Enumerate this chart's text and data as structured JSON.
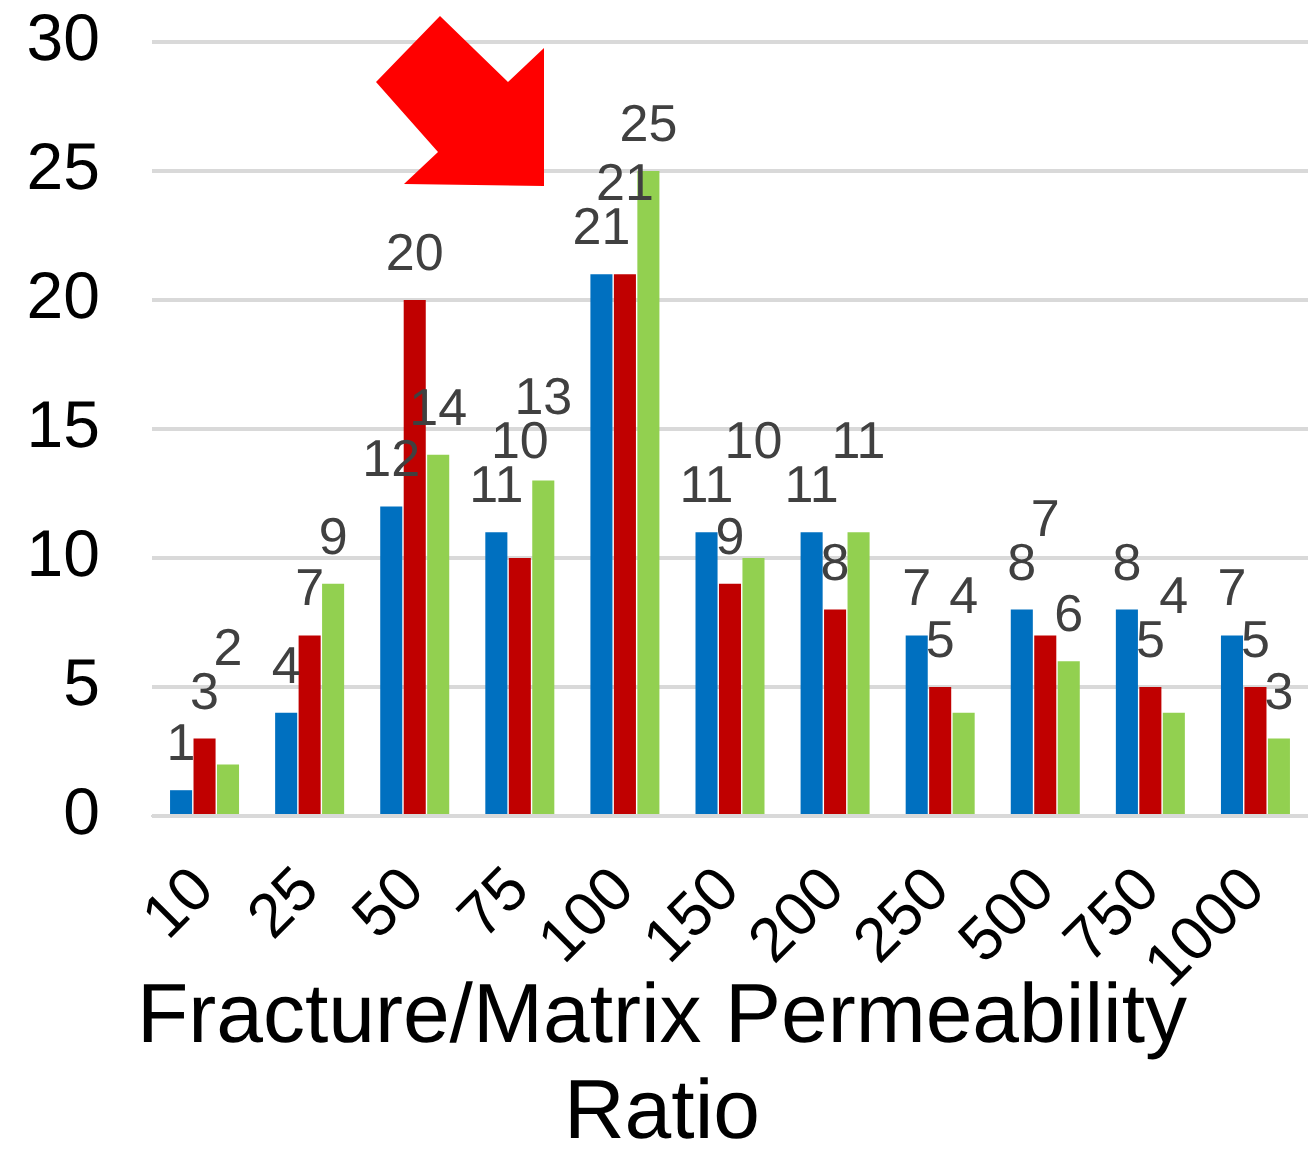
{
  "chart_data": {
    "type": "bar",
    "xlabel": "Fracture/Matrix Permeability Ratio",
    "categories": [
      "10",
      "25",
      "50",
      "75",
      "100",
      "150",
      "200",
      "250",
      "500",
      "750",
      "1000"
    ],
    "series": [
      {
        "color": "#0070c0",
        "values": [
          1,
          4,
          12,
          11,
          21,
          11,
          11,
          7,
          8,
          8,
          7
        ]
      },
      {
        "color": "#c00000",
        "values": [
          3,
          7,
          20,
          10,
          21,
          9,
          8,
          5,
          7,
          5,
          5
        ]
      },
      {
        "color": "#92d050",
        "values": [
          2,
          9,
          14,
          13,
          25,
          10,
          11,
          4,
          6,
          4,
          3
        ]
      }
    ],
    "ylim": [
      0,
      30
    ],
    "yticks": [
      0,
      5,
      10,
      15,
      20,
      25,
      30
    ],
    "grid": "y",
    "data_labels": true
  }
}
